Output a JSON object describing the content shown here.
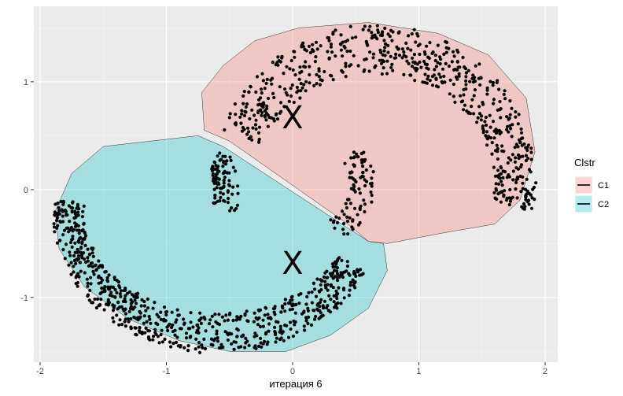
{
  "chart_data": {
    "type": "scatter",
    "title": "",
    "xlabel": "итерация 6",
    "ylabel": "",
    "xlim": [
      -2.05,
      2.1
    ],
    "ylim": [
      -1.6,
      1.7
    ],
    "x_ticks": [
      -2,
      -1,
      0,
      1,
      2
    ],
    "x_tick_labels": [
      "-2",
      "-1",
      "0",
      "1",
      "2"
    ],
    "y_ticks": [
      -1,
      0,
      1
    ],
    "y_tick_labels": [
      "-1",
      "0",
      "1"
    ],
    "grid": true,
    "legend": {
      "title": "Clstr",
      "position": "right",
      "entries": [
        {
          "label": "C1",
          "fill": "#F8766D"
        },
        {
          "label": "C2",
          "fill": "#00BFC4"
        }
      ]
    },
    "clusters": [
      {
        "name": "C1",
        "fill": "#F8766D",
        "hull": [
          [
            -0.5,
            0.45
          ],
          [
            -0.7,
            0.55
          ],
          [
            -0.72,
            0.9
          ],
          [
            -0.55,
            1.15
          ],
          [
            -0.3,
            1.38
          ],
          [
            0.05,
            1.5
          ],
          [
            0.6,
            1.55
          ],
          [
            1.15,
            1.45
          ],
          [
            1.55,
            1.25
          ],
          [
            1.85,
            0.85
          ],
          [
            1.92,
            0.35
          ],
          [
            1.8,
            -0.1
          ],
          [
            1.6,
            -0.32
          ],
          [
            1.2,
            -0.4
          ],
          [
            0.75,
            -0.5
          ],
          [
            0.6,
            -0.48
          ],
          [
            0.45,
            -0.33
          ]
        ],
        "centroid": [
          0.0,
          0.67
        ]
      },
      {
        "name": "C2",
        "fill": "#00BFC4",
        "hull": [
          [
            -0.75,
            0.5
          ],
          [
            -1.5,
            0.4
          ],
          [
            -1.75,
            0.15
          ],
          [
            -1.88,
            -0.2
          ],
          [
            -1.85,
            -0.55
          ],
          [
            -1.65,
            -0.9
          ],
          [
            -1.3,
            -1.2
          ],
          [
            -0.9,
            -1.4
          ],
          [
            -0.5,
            -1.5
          ],
          [
            -0.05,
            -1.5
          ],
          [
            0.3,
            -1.35
          ],
          [
            0.6,
            -1.1
          ],
          [
            0.75,
            -0.75
          ],
          [
            0.72,
            -0.5
          ],
          [
            0.6,
            -0.48
          ],
          [
            -0.55,
            0.4
          ]
        ],
        "centroid": [
          0.0,
          -0.68
        ]
      }
    ],
    "point_bands": [
      {
        "cluster": "C1",
        "shape": "ring",
        "cx": 0.65,
        "cy": 0.05,
        "a_min": 0.95,
        "a_max": 1.28,
        "b_min": 1.02,
        "b_max": 1.48,
        "t_from_deg": -10,
        "t_to_deg": 160,
        "count": 620
      },
      {
        "cluster": "C1",
        "shape": "ring",
        "cx": 0.2,
        "cy": 0.05,
        "a_min": 0.25,
        "a_max": 0.45,
        "b_min": 0.35,
        "b_max": 0.55,
        "t_from_deg": -70,
        "t_to_deg": 40,
        "count": 90
      },
      {
        "cluster": "C2",
        "shape": "ring",
        "cx": -0.6,
        "cy": -0.2,
        "a_min": 1.05,
        "a_max": 1.3,
        "b_min": 0.95,
        "b_max": 1.32,
        "t_from_deg": 175,
        "t_to_deg": 335,
        "count": 720
      },
      {
        "cluster": "C2",
        "shape": "ring",
        "cx": -0.65,
        "cy": -0.05,
        "a_min": 0.02,
        "a_max": 0.22,
        "b_min": 0.25,
        "b_max": 0.5,
        "t_from_deg": -20,
        "t_to_deg": 70,
        "count": 90
      }
    ]
  }
}
